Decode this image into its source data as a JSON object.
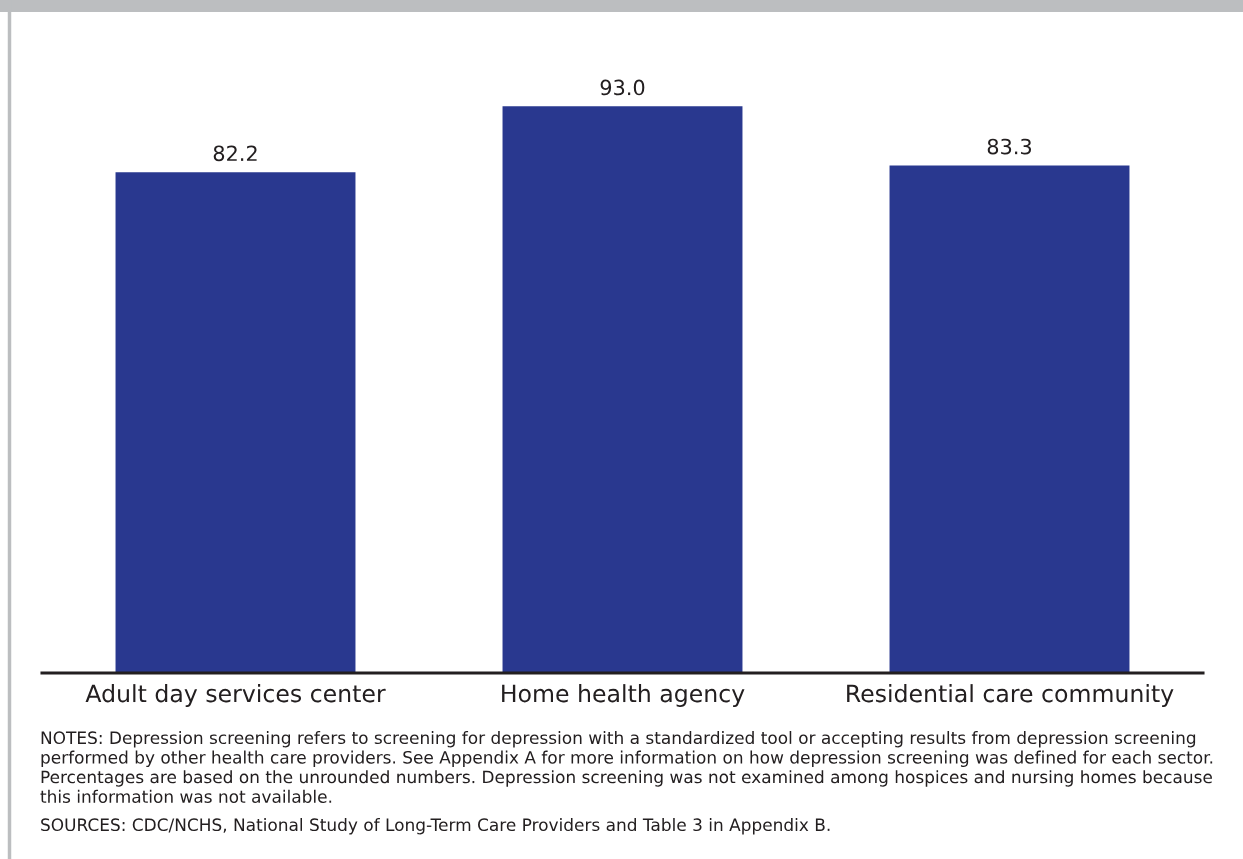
{
  "chart_data": {
    "type": "bar",
    "categories": [
      "Adult day services center",
      "Home health agency",
      "Residential care community"
    ],
    "values": [
      82.2,
      93.0,
      83.3
    ],
    "value_labels": [
      "82.2",
      "93.0",
      "83.3"
    ],
    "color": "#29388f",
    "tick_labels": "x",
    "grid": false,
    "legend": false,
    "annotations": [
      "NOTES: Depression screening refers to screening for depression with a standardized tool or accepting results from depression screening performed by other health care providers. See Appendix A for more information on how depression screening was defined for each sector. Percentages are based on the unrounded numbers. Depression screening was not examined among hospices and nursing homes because this information was not available.",
      "SOURCES: CDC/NCHS, National Study of Long-Term Care Providers and Table 3 in Appendix B."
    ]
  }
}
